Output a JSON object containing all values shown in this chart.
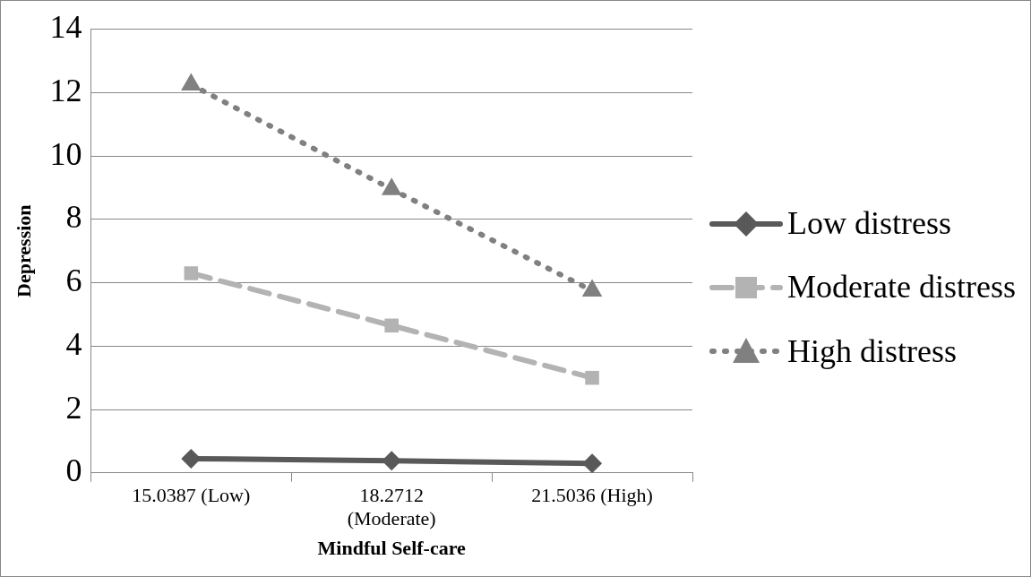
{
  "chart_data": {
    "type": "line",
    "xlabel": "Mindful Self-care",
    "ylabel": "Depression",
    "categories": [
      "15.0387 (Low)",
      "18.2712 (Moderate)",
      "21.5036 (High)"
    ],
    "series": [
      {
        "name": "Low distress",
        "color": "#595959",
        "values": [
          0.45,
          0.38,
          0.3
        ],
        "marker": "diamond",
        "line_style": "solid"
      },
      {
        "name": "Moderate distress",
        "color": "#b3b3b3",
        "values": [
          6.3,
          4.65,
          3.0
        ],
        "marker": "square",
        "line_style": "dashed"
      },
      {
        "name": "High distress",
        "color": "#808080",
        "values": [
          12.25,
          8.95,
          5.75
        ],
        "marker": "triangle",
        "line_style": "dotted"
      }
    ],
    "ylim": [
      0,
      14
    ],
    "yticks": [
      0,
      2,
      4,
      6,
      8,
      10,
      12,
      14
    ],
    "grid": "y",
    "legend": "right"
  }
}
